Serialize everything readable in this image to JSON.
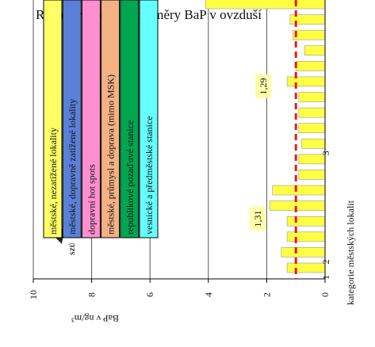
{
  "chart_data": {
    "type": "bar",
    "title": "Roční aritmetické průměry BaP v ovzduší",
    "y_label": "BaP v ng/m³",
    "x_label": "kategorie městských lokalit",
    "logo": "SZÚ",
    "categories": [
      "1",
      "2",
      null,
      null,
      null,
      null,
      null,
      null,
      "3",
      null,
      null,
      null,
      null,
      null,
      null,
      null,
      null,
      null
    ],
    "values": [
      1.3,
      1.5,
      1.3,
      1.3,
      1.9,
      1.8,
      0.9,
      0.9,
      0.8,
      0.9,
      0.9,
      0.9,
      1.3,
      1.0,
      0.7,
      1.1,
      1.2,
      4.1
    ],
    "color": "#ffff44",
    "ylim": [
      0,
      10
    ],
    "yticks": [
      0,
      2,
      4,
      6,
      8,
      10
    ],
    "grid": true,
    "reference_line": {
      "value": 1,
      "color": "#e02020"
    },
    "annotations": [
      "1,31",
      "1,29"
    ],
    "legend": [
      {
        "label": "městské, nezatížené lokality",
        "color": "#ffff66"
      },
      {
        "label": "městské, dopravně zatížené lokality",
        "color": "#5b80d8"
      },
      {
        "label": "dopravní hot spots",
        "color": "#ff8fcf"
      },
      {
        "label": "městské, průmysl a doprava (mimo MSK)",
        "color": "#f4b183"
      },
      {
        "label": "republikové pozaďové stanice",
        "color": "#00a650"
      },
      {
        "label": "vesnické a předměstské stanice",
        "color": "#66ffff"
      }
    ]
  }
}
